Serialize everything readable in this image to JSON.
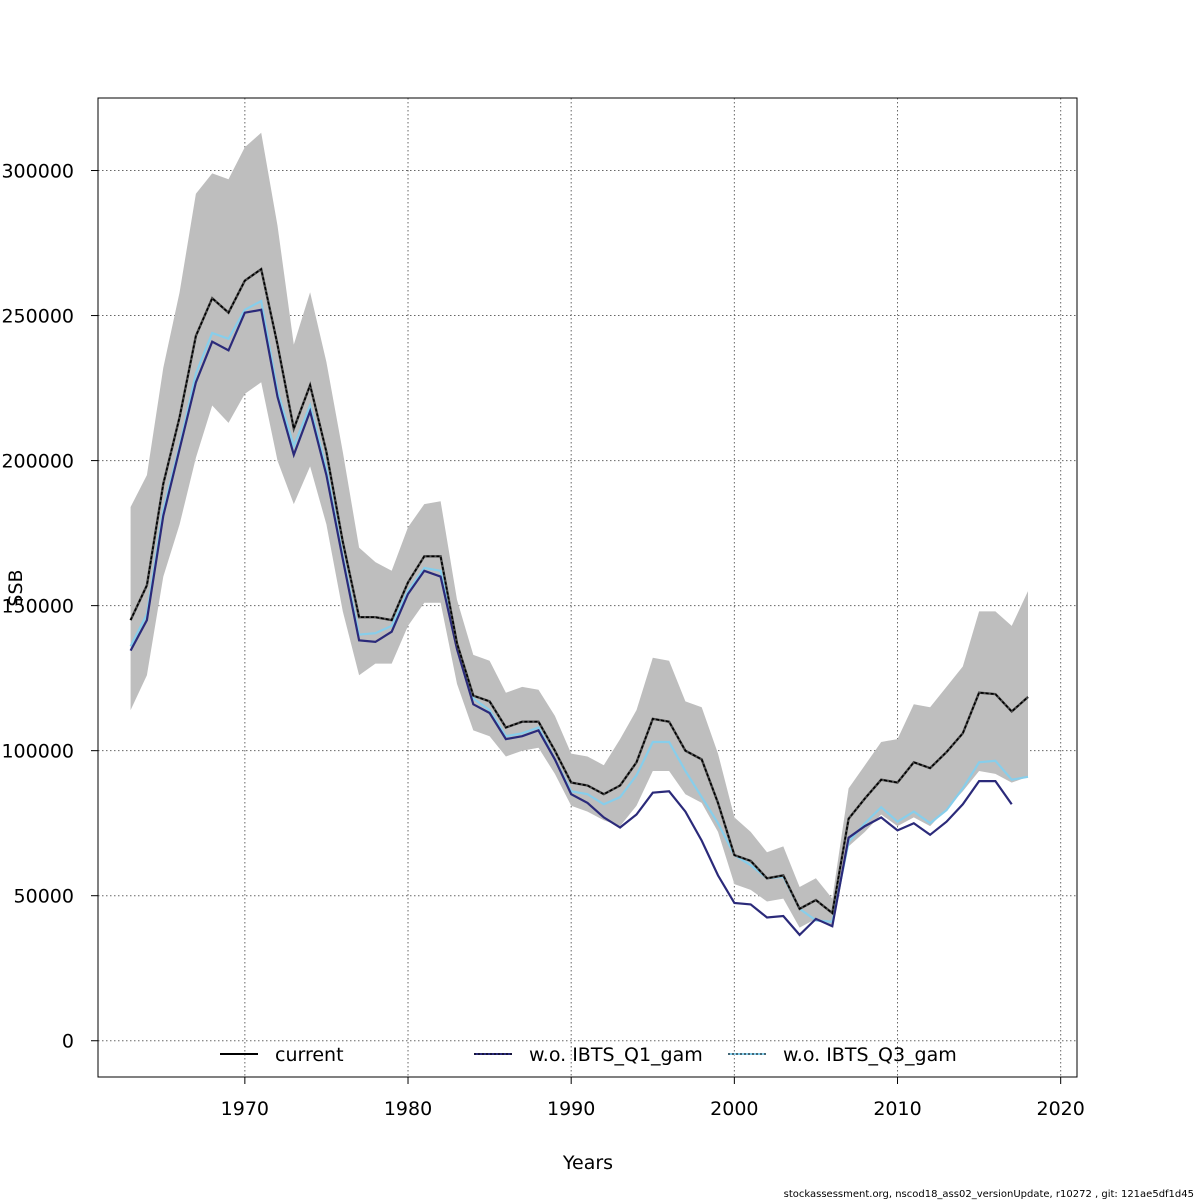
{
  "footer": "stockassessment.org, nscod18_ass02_versionUpdate, r10272 , git: 121ae5df1d45",
  "chart_data": {
    "type": "line",
    "xlabel": "Years",
    "ylabel": "SSB",
    "xlim": [
      1961,
      2021
    ],
    "ylim": [
      -12500,
      325000
    ],
    "x_ticks": [
      1970,
      1980,
      1990,
      2000,
      2010,
      2020
    ],
    "y_ticks": [
      0,
      50000,
      100000,
      150000,
      200000,
      250000,
      300000
    ],
    "x_tick_labels": [
      "1970",
      "1980",
      "1990",
      "2000",
      "2010",
      "2020"
    ],
    "y_tick_labels": [
      "0",
      "50000",
      "100000",
      "150000",
      "200000",
      "250000",
      "300000"
    ],
    "grid": true,
    "legend_position": "bottom",
    "band": {
      "color": "#bebebe",
      "x": [
        1963,
        1964,
        1965,
        1966,
        1967,
        1968,
        1969,
        1970,
        1971,
        1972,
        1973,
        1974,
        1975,
        1976,
        1977,
        1978,
        1979,
        1980,
        1981,
        1982,
        1983,
        1984,
        1985,
        1986,
        1987,
        1988,
        1989,
        1990,
        1991,
        1992,
        1993,
        1994,
        1995,
        1996,
        1997,
        1998,
        1999,
        2000,
        2001,
        2002,
        2003,
        2004,
        2005,
        2006,
        2007,
        2008,
        2009,
        2010,
        2011,
        2012,
        2013,
        2014,
        2015,
        2016,
        2017,
        2018
      ],
      "upper": [
        184000,
        195000,
        232000,
        258000,
        292000,
        299000,
        297000,
        308000,
        313000,
        281000,
        240000,
        258000,
        234000,
        203000,
        170000,
        165000,
        162000,
        177000,
        185000,
        186000,
        152000,
        133000,
        131000,
        120000,
        122000,
        121000,
        112000,
        99000,
        98000,
        95000,
        104000,
        114000,
        132000,
        131000,
        117000,
        115000,
        99000,
        77000,
        72000,
        65000,
        67000,
        53000,
        56000,
        49000,
        87000,
        95000,
        103000,
        104000,
        116000,
        115000,
        122000,
        129000,
        148000,
        148000,
        143000,
        155000
      ],
      "lower": [
        114000,
        126000,
        160000,
        178000,
        201000,
        219000,
        213000,
        223000,
        227000,
        200000,
        185000,
        198000,
        178000,
        148000,
        126000,
        130000,
        130000,
        143000,
        151000,
        151000,
        123000,
        107000,
        105000,
        98000,
        100000,
        101000,
        92000,
        81000,
        79000,
        76000,
        74000,
        81000,
        93000,
        93000,
        85000,
        82000,
        72000,
        54000,
        52000,
        48000,
        49000,
        39000,
        42000,
        39000,
        67000,
        72000,
        78000,
        74000,
        77000,
        74000,
        80000,
        86000,
        93000,
        92000,
        89000,
        91000
      ]
    },
    "series": [
      {
        "name": "current",
        "color": "#000000",
        "x": [
          1963,
          1964,
          1965,
          1966,
          1967,
          1968,
          1969,
          1970,
          1971,
          1972,
          1973,
          1974,
          1975,
          1976,
          1977,
          1978,
          1979,
          1980,
          1981,
          1982,
          1983,
          1984,
          1985,
          1986,
          1987,
          1988,
          1989,
          1990,
          1991,
          1992,
          1993,
          1994,
          1995,
          1996,
          1997,
          1998,
          1999,
          2000,
          2001,
          2002,
          2003,
          2004,
          2005,
          2006,
          2007,
          2008,
          2009,
          2010,
          2011,
          2012,
          2013,
          2014,
          2015,
          2016,
          2017,
          2018
        ],
        "values": [
          145000,
          157000,
          192000,
          215000,
          243000,
          256000,
          251000,
          262000,
          266000,
          240000,
          211000,
          226000,
          203000,
          172000,
          146000,
          146000,
          145000,
          158000,
          167000,
          167000,
          137000,
          119000,
          117000,
          108000,
          110000,
          110000,
          100000,
          89000,
          88000,
          85000,
          88000,
          96000,
          111000,
          110000,
          100000,
          97000,
          82000,
          64000,
          62000,
          56000,
          57000,
          45500,
          48500,
          44000,
          76500,
          83500,
          90000,
          89000,
          96000,
          94000,
          99500,
          106000,
          120000,
          119500,
          113500,
          118500
        ]
      },
      {
        "name": "w.o. IBTS_Q1_gam",
        "color": "#2b2a7a",
        "x": [
          1963,
          1964,
          1965,
          1966,
          1967,
          1968,
          1969,
          1970,
          1971,
          1972,
          1973,
          1974,
          1975,
          1976,
          1977,
          1978,
          1979,
          1980,
          1981,
          1982,
          1983,
          1984,
          1985,
          1986,
          1987,
          1988,
          1989,
          1990,
          1991,
          1992,
          1993,
          1994,
          1995,
          1996,
          1997,
          1998,
          1999,
          2000,
          2001,
          2002,
          2003,
          2004,
          2005,
          2006,
          2007,
          2008,
          2009,
          2010,
          2011,
          2012,
          2013,
          2014,
          2015,
          2016,
          2017
        ],
        "values": [
          134500,
          145000,
          181000,
          204000,
          227000,
          241000,
          238000,
          251000,
          252000,
          222000,
          202000,
          217000,
          195000,
          166000,
          138000,
          137500,
          141000,
          154000,
          162000,
          160000,
          135000,
          116000,
          113000,
          104000,
          105000,
          107000,
          97000,
          85000,
          82000,
          77000,
          73500,
          78000,
          85500,
          86000,
          79000,
          69000,
          57000,
          47500,
          47000,
          42500,
          43000,
          36500,
          42000,
          39500,
          70000,
          74000,
          77000,
          72500,
          75000,
          71000,
          75500,
          81500,
          89500,
          89500,
          81500
        ]
      },
      {
        "name": "w.o. IBTS_Q3_gam",
        "color": "#87ceeb",
        "x": [
          1963,
          1964,
          1965,
          1966,
          1967,
          1968,
          1969,
          1970,
          1971,
          1972,
          1973,
          1974,
          1975,
          1976,
          1977,
          1978,
          1979,
          1980,
          1981,
          1982,
          1983,
          1984,
          1985,
          1986,
          1987,
          1988,
          1989,
          1990,
          1991,
          1992,
          1993,
          1994,
          1995,
          1996,
          1997,
          1998,
          1999,
          2000,
          2001,
          2002,
          2003,
          2004,
          2005,
          2006,
          2007,
          2008,
          2009,
          2010,
          2011,
          2012,
          2013,
          2014,
          2015,
          2016,
          2017,
          2018
        ],
        "values": [
          136000,
          147000,
          183000,
          205000,
          230000,
          244000,
          242000,
          252000,
          255000,
          224000,
          205000,
          219000,
          197000,
          167000,
          140000,
          140500,
          143000,
          155000,
          163000,
          162000,
          135500,
          118000,
          114000,
          105000,
          106000,
          108000,
          97000,
          86000,
          85000,
          81500,
          84000,
          91500,
          103000,
          103000,
          93000,
          84000,
          75000,
          64000,
          60500,
          56000,
          56500,
          45500,
          41500,
          41000,
          68500,
          75000,
          80500,
          75500,
          79000,
          75000,
          79500,
          87000,
          96000,
          96500,
          90000,
          91000
        ]
      }
    ],
    "legend_entries": [
      "current",
      "w.o. IBTS_Q1_gam",
      "w.o. IBTS_Q3_gam"
    ]
  }
}
